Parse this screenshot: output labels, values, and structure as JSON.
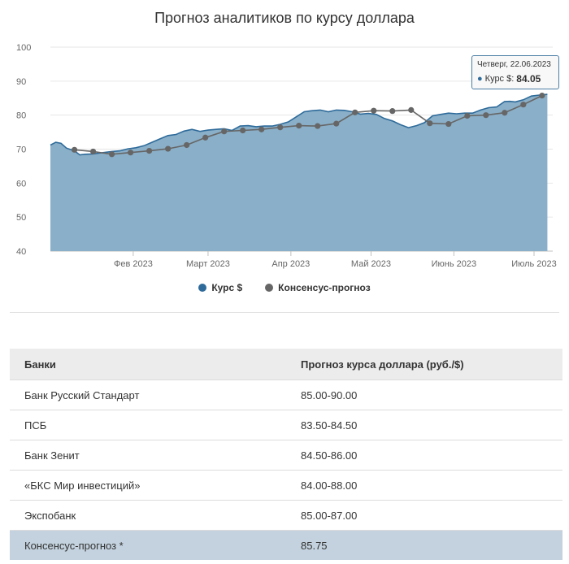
{
  "chart_data": {
    "type": "area",
    "title": "Прогноз аналитиков по курсу доллара",
    "ylim": [
      40,
      100
    ],
    "yticks": [
      40,
      50,
      60,
      70,
      80,
      90,
      100
    ],
    "xlim": [
      "2023-01-01",
      "2023-07-08"
    ],
    "xticks": [
      {
        "date": "2023-02-01",
        "label": "Фев 2023"
      },
      {
        "date": "2023-03-01",
        "label": "Март 2023"
      },
      {
        "date": "2023-04-01",
        "label": "Апр 2023"
      },
      {
        "date": "2023-05-01",
        "label": "Май 2023"
      },
      {
        "date": "2023-06-01",
        "label": "Июнь 2023"
      },
      {
        "date": "2023-07-01",
        "label": "Июль 2023"
      }
    ],
    "legend_position": "bottom-center",
    "grid": "horizontal",
    "series": [
      {
        "name": "Курс $",
        "color": "#2e6b9a",
        "fill": "#8aafc8",
        "x": [
          "2023-01-01",
          "2023-01-03",
          "2023-01-05",
          "2023-01-07",
          "2023-01-10",
          "2023-01-12",
          "2023-01-14",
          "2023-01-17",
          "2023-01-19",
          "2023-01-21",
          "2023-01-24",
          "2023-01-27",
          "2023-01-30",
          "2023-02-02",
          "2023-02-05",
          "2023-02-08",
          "2023-02-11",
          "2023-02-14",
          "2023-02-17",
          "2023-02-20",
          "2023-02-23",
          "2023-02-26",
          "2023-03-01",
          "2023-03-04",
          "2023-03-07",
          "2023-03-10",
          "2023-03-13",
          "2023-03-16",
          "2023-03-19",
          "2023-03-22",
          "2023-03-25",
          "2023-03-28",
          "2023-03-31",
          "2023-04-03",
          "2023-04-06",
          "2023-04-09",
          "2023-04-12",
          "2023-04-15",
          "2023-04-18",
          "2023-04-21",
          "2023-04-24",
          "2023-04-27",
          "2023-04-30",
          "2023-05-03",
          "2023-05-06",
          "2023-05-09",
          "2023-05-12",
          "2023-05-15",
          "2023-05-18",
          "2023-05-21",
          "2023-05-24",
          "2023-05-27",
          "2023-05-30",
          "2023-06-02",
          "2023-06-05",
          "2023-06-08",
          "2023-06-11",
          "2023-06-14",
          "2023-06-17",
          "2023-06-20",
          "2023-06-22",
          "2023-06-24",
          "2023-06-27",
          "2023-06-30",
          "2023-07-03",
          "2023-07-06"
        ],
        "y": [
          71.2,
          72.0,
          71.7,
          70.3,
          69.5,
          68.3,
          68.5,
          68.6,
          68.8,
          69.0,
          69.3,
          69.5,
          70.1,
          70.4,
          71.0,
          72.0,
          73.0,
          74.0,
          74.3,
          75.3,
          75.8,
          75.2,
          75.6,
          75.8,
          76.0,
          75.5,
          76.8,
          76.9,
          76.6,
          76.8,
          76.8,
          77.3,
          78.0,
          79.5,
          81.0,
          81.3,
          81.5,
          81.0,
          81.5,
          81.4,
          81.0,
          80.3,
          80.5,
          80.2,
          79.0,
          78.3,
          77.2,
          76.3,
          76.9,
          77.8,
          79.8,
          80.2,
          80.6,
          80.4,
          80.6,
          80.6,
          81.5,
          82.2,
          82.4,
          84.0,
          84.05,
          83.9,
          84.5,
          85.6,
          85.9,
          86.1
        ]
      },
      {
        "name": "Консенсус-прогноз",
        "color": "#666666",
        "x": [
          "2023-01-10",
          "2023-01-17",
          "2023-01-24",
          "2023-01-31",
          "2023-02-07",
          "2023-02-14",
          "2023-02-21",
          "2023-02-28",
          "2023-03-07",
          "2023-03-14",
          "2023-03-21",
          "2023-03-28",
          "2023-04-04",
          "2023-04-11",
          "2023-04-18",
          "2023-04-25",
          "2023-05-02",
          "2023-05-09",
          "2023-05-16",
          "2023-05-23",
          "2023-05-30",
          "2023-06-06",
          "2023-06-13",
          "2023-06-20",
          "2023-06-27",
          "2023-07-04"
        ],
        "y": [
          69.8,
          69.3,
          68.5,
          69.0,
          69.5,
          70.1,
          71.2,
          73.4,
          75.2,
          75.5,
          75.8,
          76.4,
          76.9,
          76.8,
          77.5,
          80.8,
          81.3,
          81.2,
          81.5,
          77.6,
          77.4,
          79.8,
          80.0,
          80.7,
          83.1,
          85.75
        ]
      }
    ]
  },
  "tooltip": {
    "date_line": "Четверг, 22.06.2023",
    "series_label": "Курс $:",
    "value": "84.05"
  },
  "table": {
    "headers": [
      "Банки",
      "Прогноз курса доллара (руб./$)"
    ],
    "rows": [
      {
        "bank": "Банк Русский Стандарт",
        "forecast": "85.00-90.00"
      },
      {
        "bank": "ПСБ",
        "forecast": "83.50-84.50"
      },
      {
        "bank": "Банк Зенит",
        "forecast": "84.50-86.00"
      },
      {
        "bank": "«БКС Мир инвестиций»",
        "forecast": "84.00-88.00"
      },
      {
        "bank": "Экспобанк",
        "forecast": "85.00-87.00"
      },
      {
        "bank": "Консенсус-прогноз *",
        "forecast": "85.75",
        "highlight": true
      }
    ]
  }
}
